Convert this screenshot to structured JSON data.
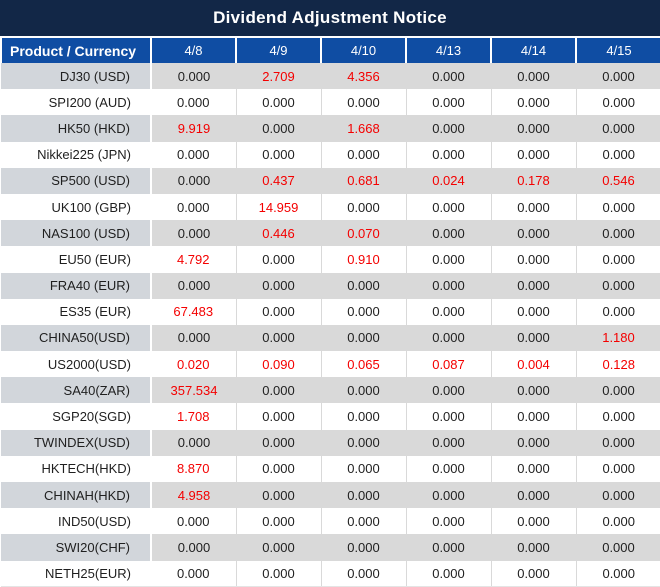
{
  "title": "Dividend Adjustment Notice",
  "colors": {
    "title_bar_bg": "#122747",
    "header_bg": "#0f4da3",
    "header_text": "#ffffff",
    "gray_row_bg": "#d9d9d9",
    "gray_row_label_bg": "#d2d6db",
    "white_row_bg": "#ffffff",
    "value_text": "#1f1f1f",
    "adjustment_red": "#f40000"
  },
  "table": {
    "product_column_header": "Product / Currency",
    "date_column_headers": [
      "4/8",
      "4/9",
      "4/10",
      "4/13",
      "4/14",
      "4/15"
    ],
    "rows": [
      {
        "product": "DJ30 (USD)",
        "values": [
          "0.000",
          "2.709",
          "4.356",
          "0.000",
          "0.000",
          "0.000"
        ],
        "red_columns": [
          1,
          2
        ]
      },
      {
        "product": "SPI200 (AUD)",
        "values": [
          "0.000",
          "0.000",
          "0.000",
          "0.000",
          "0.000",
          "0.000"
        ],
        "red_columns": []
      },
      {
        "product": "HK50 (HKD)",
        "values": [
          "9.919",
          "0.000",
          "1.668",
          "0.000",
          "0.000",
          "0.000"
        ],
        "red_columns": [
          0,
          2
        ]
      },
      {
        "product": "Nikkei225 (JPN)",
        "values": [
          "0.000",
          "0.000",
          "0.000",
          "0.000",
          "0.000",
          "0.000"
        ],
        "red_columns": []
      },
      {
        "product": "SP500 (USD)",
        "values": [
          "0.000",
          "0.437",
          "0.681",
          "0.024",
          "0.178",
          "0.546"
        ],
        "red_columns": [
          1,
          2,
          3,
          4,
          5
        ]
      },
      {
        "product": "UK100 (GBP)",
        "values": [
          "0.000",
          "14.959",
          "0.000",
          "0.000",
          "0.000",
          "0.000"
        ],
        "red_columns": [
          1
        ]
      },
      {
        "product": "NAS100 (USD)",
        "values": [
          "0.000",
          "0.446",
          "0.070",
          "0.000",
          "0.000",
          "0.000"
        ],
        "red_columns": [
          1,
          2
        ]
      },
      {
        "product": "EU50 (EUR)",
        "values": [
          "4.792",
          "0.000",
          "0.910",
          "0.000",
          "0.000",
          "0.000"
        ],
        "red_columns": [
          0,
          2
        ]
      },
      {
        "product": "FRA40 (EUR)",
        "values": [
          "0.000",
          "0.000",
          "0.000",
          "0.000",
          "0.000",
          "0.000"
        ],
        "red_columns": []
      },
      {
        "product": "ES35 (EUR)",
        "values": [
          "67.483",
          "0.000",
          "0.000",
          "0.000",
          "0.000",
          "0.000"
        ],
        "red_columns": [
          0
        ]
      },
      {
        "product": "CHINA50(USD)",
        "values": [
          "0.000",
          "0.000",
          "0.000",
          "0.000",
          "0.000",
          "1.180"
        ],
        "red_columns": [
          5
        ]
      },
      {
        "product": "US2000(USD)",
        "values": [
          "0.020",
          "0.090",
          "0.065",
          "0.087",
          "0.004",
          "0.128"
        ],
        "red_columns": [
          0,
          1,
          2,
          3,
          4,
          5
        ]
      },
      {
        "product": "SA40(ZAR)",
        "values": [
          "357.534",
          "0.000",
          "0.000",
          "0.000",
          "0.000",
          "0.000"
        ],
        "red_columns": [
          0
        ]
      },
      {
        "product": "SGP20(SGD)",
        "values": [
          "1.708",
          "0.000",
          "0.000",
          "0.000",
          "0.000",
          "0.000"
        ],
        "red_columns": [
          0
        ]
      },
      {
        "product": "TWINDEX(USD)",
        "values": [
          "0.000",
          "0.000",
          "0.000",
          "0.000",
          "0.000",
          "0.000"
        ],
        "red_columns": []
      },
      {
        "product": "HKTECH(HKD)",
        "values": [
          "8.870",
          "0.000",
          "0.000",
          "0.000",
          "0.000",
          "0.000"
        ],
        "red_columns": [
          0
        ]
      },
      {
        "product": "CHINAH(HKD)",
        "values": [
          "4.958",
          "0.000",
          "0.000",
          "0.000",
          "0.000",
          "0.000"
        ],
        "red_columns": [
          0
        ]
      },
      {
        "product": "IND50(USD)",
        "values": [
          "0.000",
          "0.000",
          "0.000",
          "0.000",
          "0.000",
          "0.000"
        ],
        "red_columns": []
      },
      {
        "product": "SWI20(CHF)",
        "values": [
          "0.000",
          "0.000",
          "0.000",
          "0.000",
          "0.000",
          "0.000"
        ],
        "red_columns": []
      },
      {
        "product": "NETH25(EUR)",
        "values": [
          "0.000",
          "0.000",
          "0.000",
          "0.000",
          "0.000",
          "0.000"
        ],
        "red_columns": []
      }
    ]
  }
}
